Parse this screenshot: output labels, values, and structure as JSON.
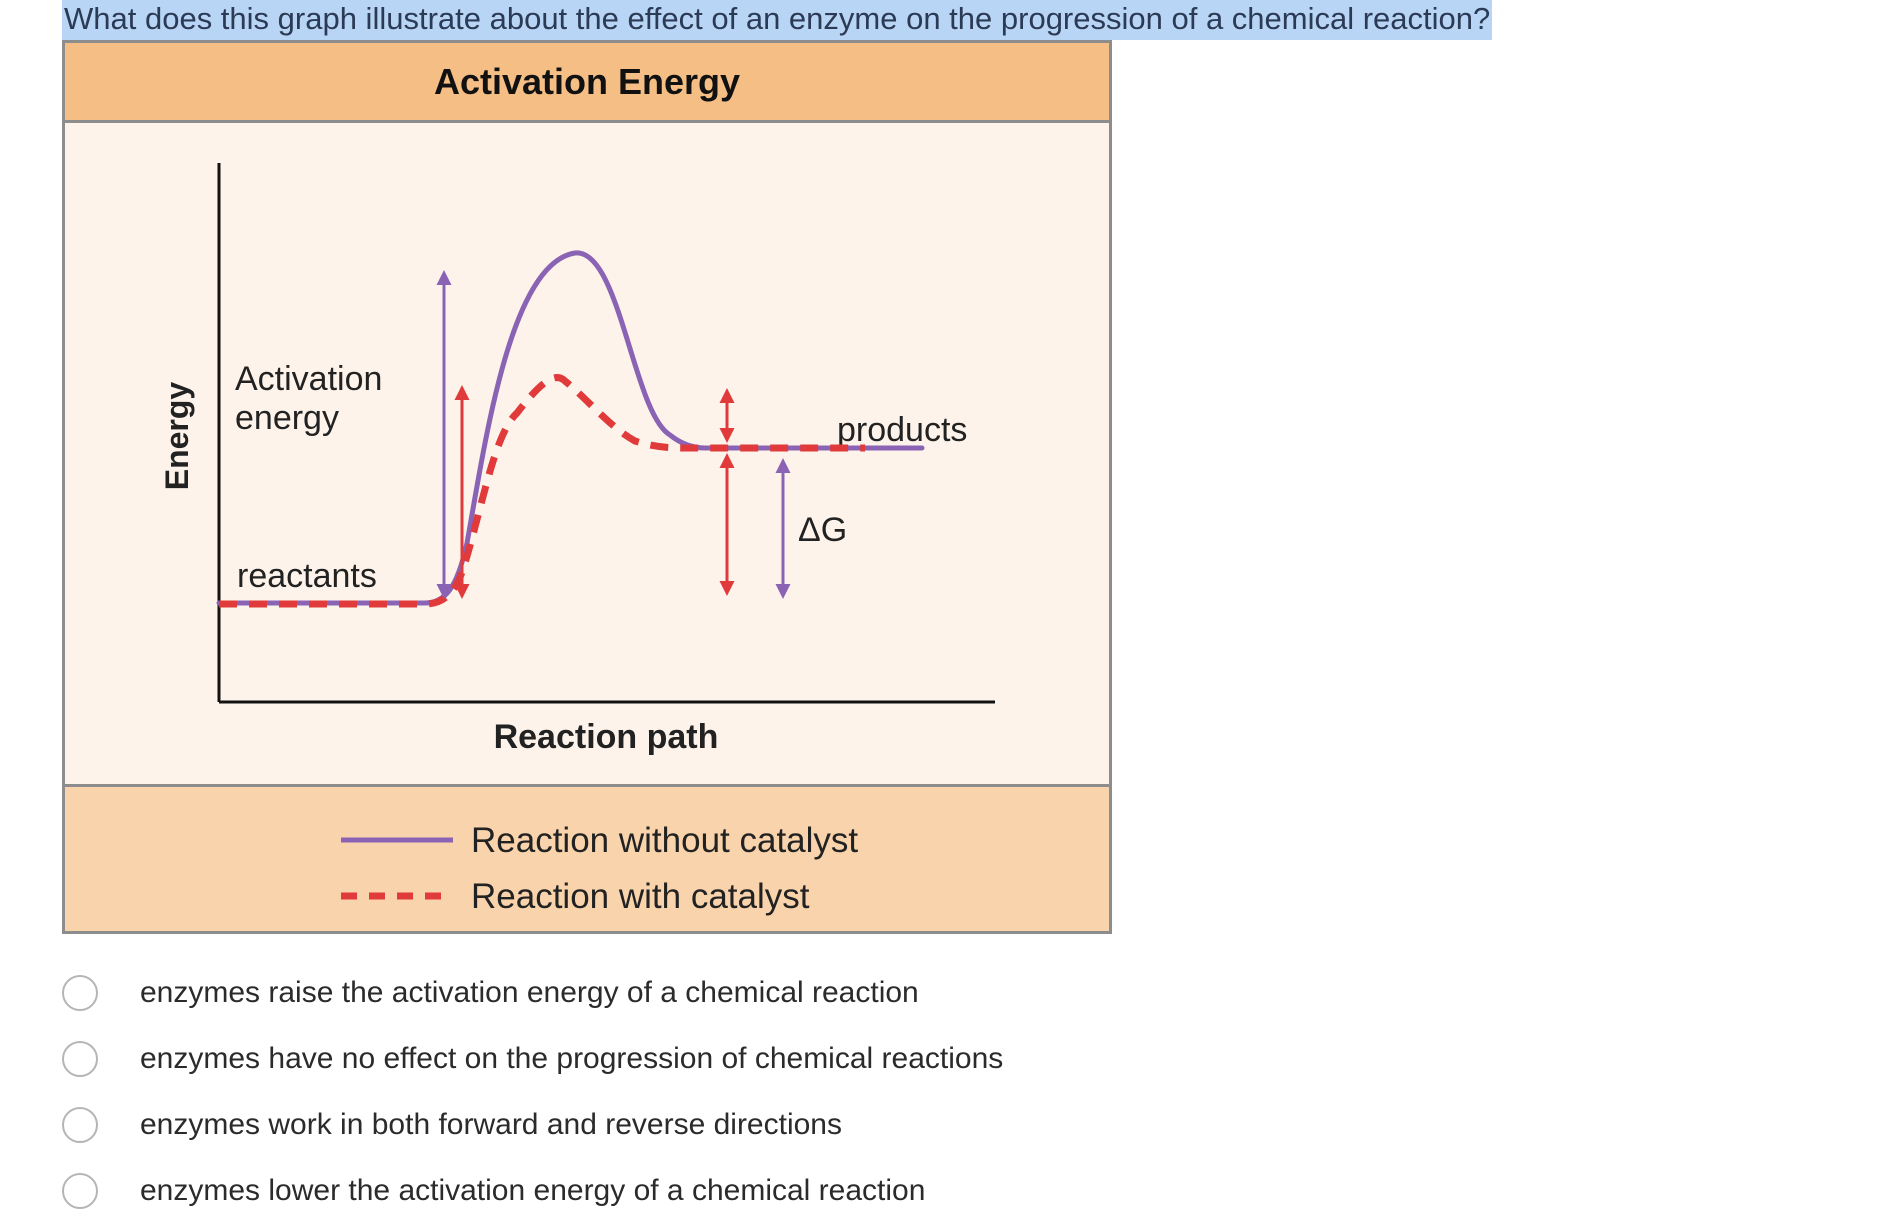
{
  "question": {
    "text": "What does this graph illustrate about the effect of an enzyme on the progression of a chemical reaction?"
  },
  "figure": {
    "title": "Activation Energy",
    "legend": [
      {
        "label": "Reaction without catalyst",
        "style": "solid",
        "color": "#8a63b5"
      },
      {
        "label": "Reaction with catalyst",
        "style": "dashed",
        "color": "#e03a3a"
      }
    ]
  },
  "chart_data": {
    "type": "line",
    "title": "Activation Energy",
    "xlabel": "Reaction path",
    "ylabel": "Energy",
    "grid": false,
    "legend_position": "bottom",
    "annotations": [
      "Activation energy",
      "reactants",
      "products",
      "ΔG"
    ],
    "series": [
      {
        "name": "Reaction without catalyst",
        "style": "solid",
        "color": "#8a63b5"
      },
      {
        "name": "Reaction with catalyst",
        "style": "dashed",
        "color": "#e03a3a"
      }
    ],
    "colors": {
      "uncatalyzed": "#8a63b5",
      "catalyzed": "#e03a3a",
      "axis": "#111111"
    }
  },
  "options": [
    {
      "label": "enzymes raise the activation energy of a chemical reaction",
      "selected": false
    },
    {
      "label": "enzymes have no effect on the progression of chemical reactions",
      "selected": false
    },
    {
      "label": "enzymes work in both forward and reverse directions",
      "selected": false
    },
    {
      "label": "enzymes lower the activation energy of a chemical reaction",
      "selected": false
    }
  ]
}
